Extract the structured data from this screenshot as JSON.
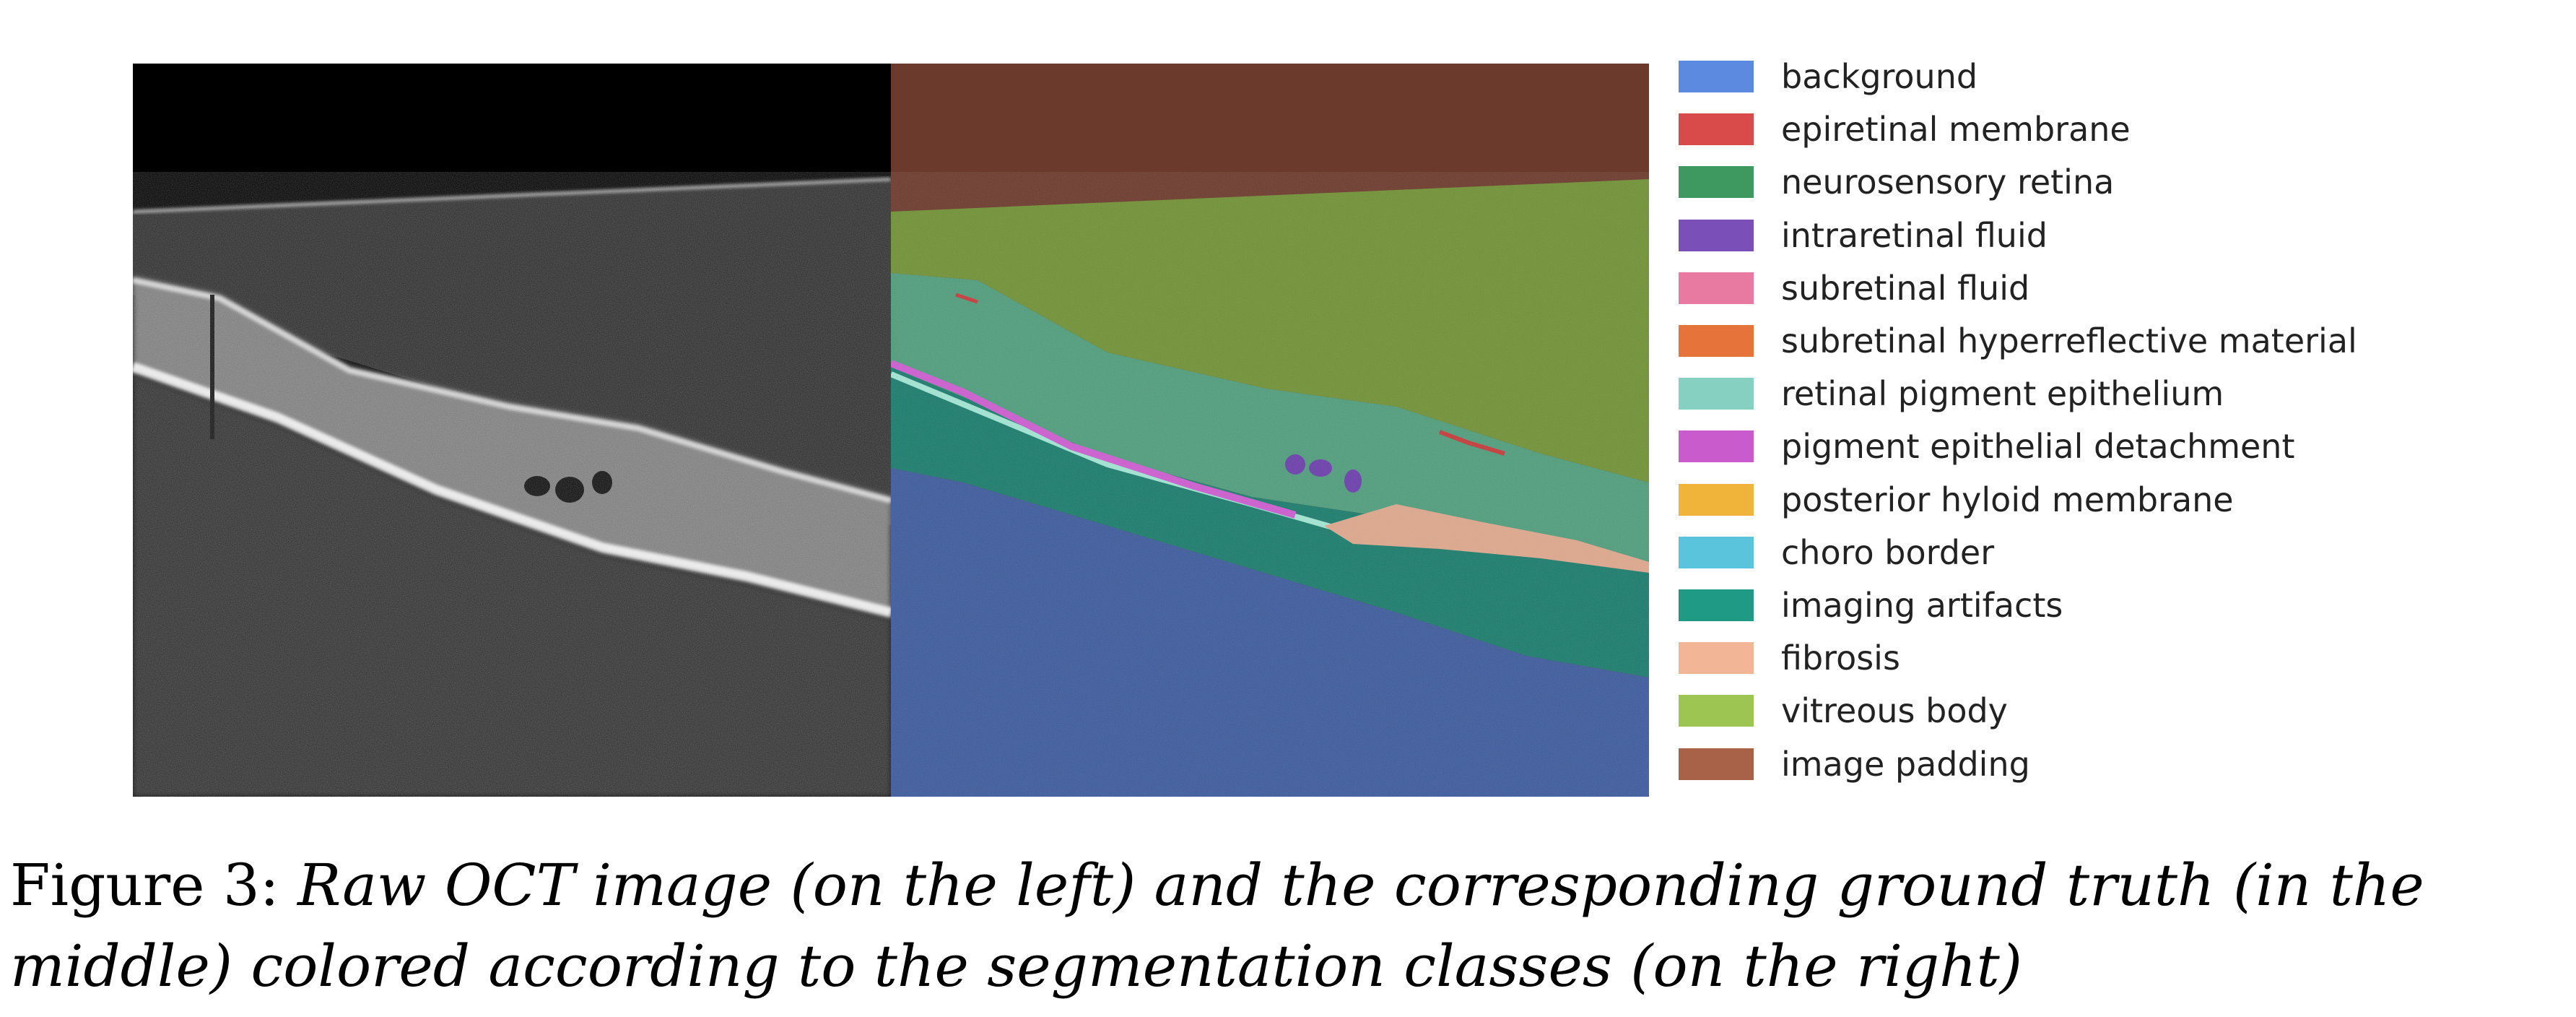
{
  "figure": {
    "label": "Figure 3:",
    "caption_italic": "Raw OCT image (on the left) and the corresponding ground truth (in the middle) colored according to the segmentation classes (on the right)"
  },
  "panels": {
    "raw": {
      "alt": "Raw OCT image"
    },
    "ground_truth": {
      "alt": "Ground truth segmentation"
    }
  },
  "legend": {
    "items": [
      {
        "label": "background",
        "color": "#5b8ae0"
      },
      {
        "label": "epiretinal membrane",
        "color": "#d94a4a"
      },
      {
        "label": "neurosensory retina",
        "color": "#3d9960"
      },
      {
        "label": "intraretinal fluid",
        "color": "#7b4fb8"
      },
      {
        "label": "subretinal fluid",
        "color": "#e879a0"
      },
      {
        "label": "subretinal hyperreflective material",
        "color": "#e5733a"
      },
      {
        "label": "retinal pigment epithelium",
        "color": "#85d0c0"
      },
      {
        "label": "pigment epithelial detachment",
        "color": "#c95bcc"
      },
      {
        "label": "posterior hyloid membrane",
        "color": "#f0b43a"
      },
      {
        "label": "choro border",
        "color": "#5ac4dc"
      },
      {
        "label": "imaging artifacts",
        "color": "#1f9a85"
      },
      {
        "label": "fibrosis",
        "color": "#f2b596"
      },
      {
        "label": "vitreous body",
        "color": "#9cc552"
      },
      {
        "label": "image padding",
        "color": "#a86248"
      }
    ]
  }
}
